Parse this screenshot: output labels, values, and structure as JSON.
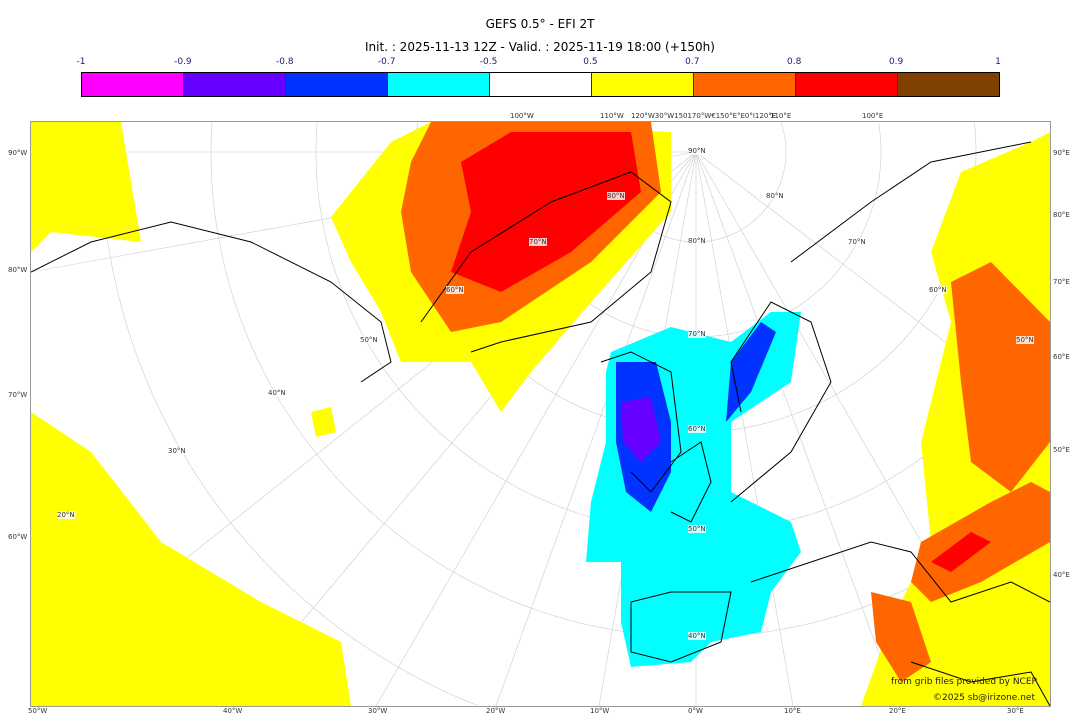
{
  "header": {
    "title": "GEFS 0.5° - EFI 2T",
    "subtitle": "Init. : 2025-11-13 12Z - Valid. : 2025-11-19 18:00 (+150h)"
  },
  "colorbar": {
    "labels": [
      "-1",
      "-0.9",
      "-0.8",
      "-0.7",
      "-0.5",
      "0.5",
      "0.7",
      "0.8",
      "0.9",
      "1"
    ],
    "colors": [
      "#ff00ff",
      "#6600ff",
      "#0033ff",
      "#00ffff",
      "#ffffff",
      "#ffff00",
      "#ff6600",
      "#ff0000",
      "#804000"
    ]
  },
  "ticks": {
    "left": [
      "90°W",
      "80°W",
      "70°W",
      "60°W"
    ],
    "bottom": [
      "50°W",
      "40°W",
      "30°W",
      "20°W",
      "10°W",
      "0°W",
      "10°E",
      "20°E",
      "30°E"
    ],
    "right": [
      "90°E",
      "80°E",
      "70°E",
      "60°E",
      "50°E",
      "40°E"
    ],
    "top": [
      "100°W",
      "110°W",
      "120°W30°W150170°W€150°E°E0°I120°E",
      "110°E",
      "100°E"
    ],
    "lat_center": [
      "90°N",
      "80°N",
      "70°N",
      "60°N",
      "50°N",
      "40°N"
    ],
    "lat_left": [
      "80°N",
      "70°N",
      "60°N",
      "50°N",
      "40°N",
      "30°N",
      "20°N"
    ],
    "lat_right": [
      "80°N",
      "70°N",
      "60°N",
      "50°N"
    ]
  },
  "credits": {
    "source": "from grib files provided by NCEP",
    "copyright": "©2025 sb@irizone.net"
  }
}
